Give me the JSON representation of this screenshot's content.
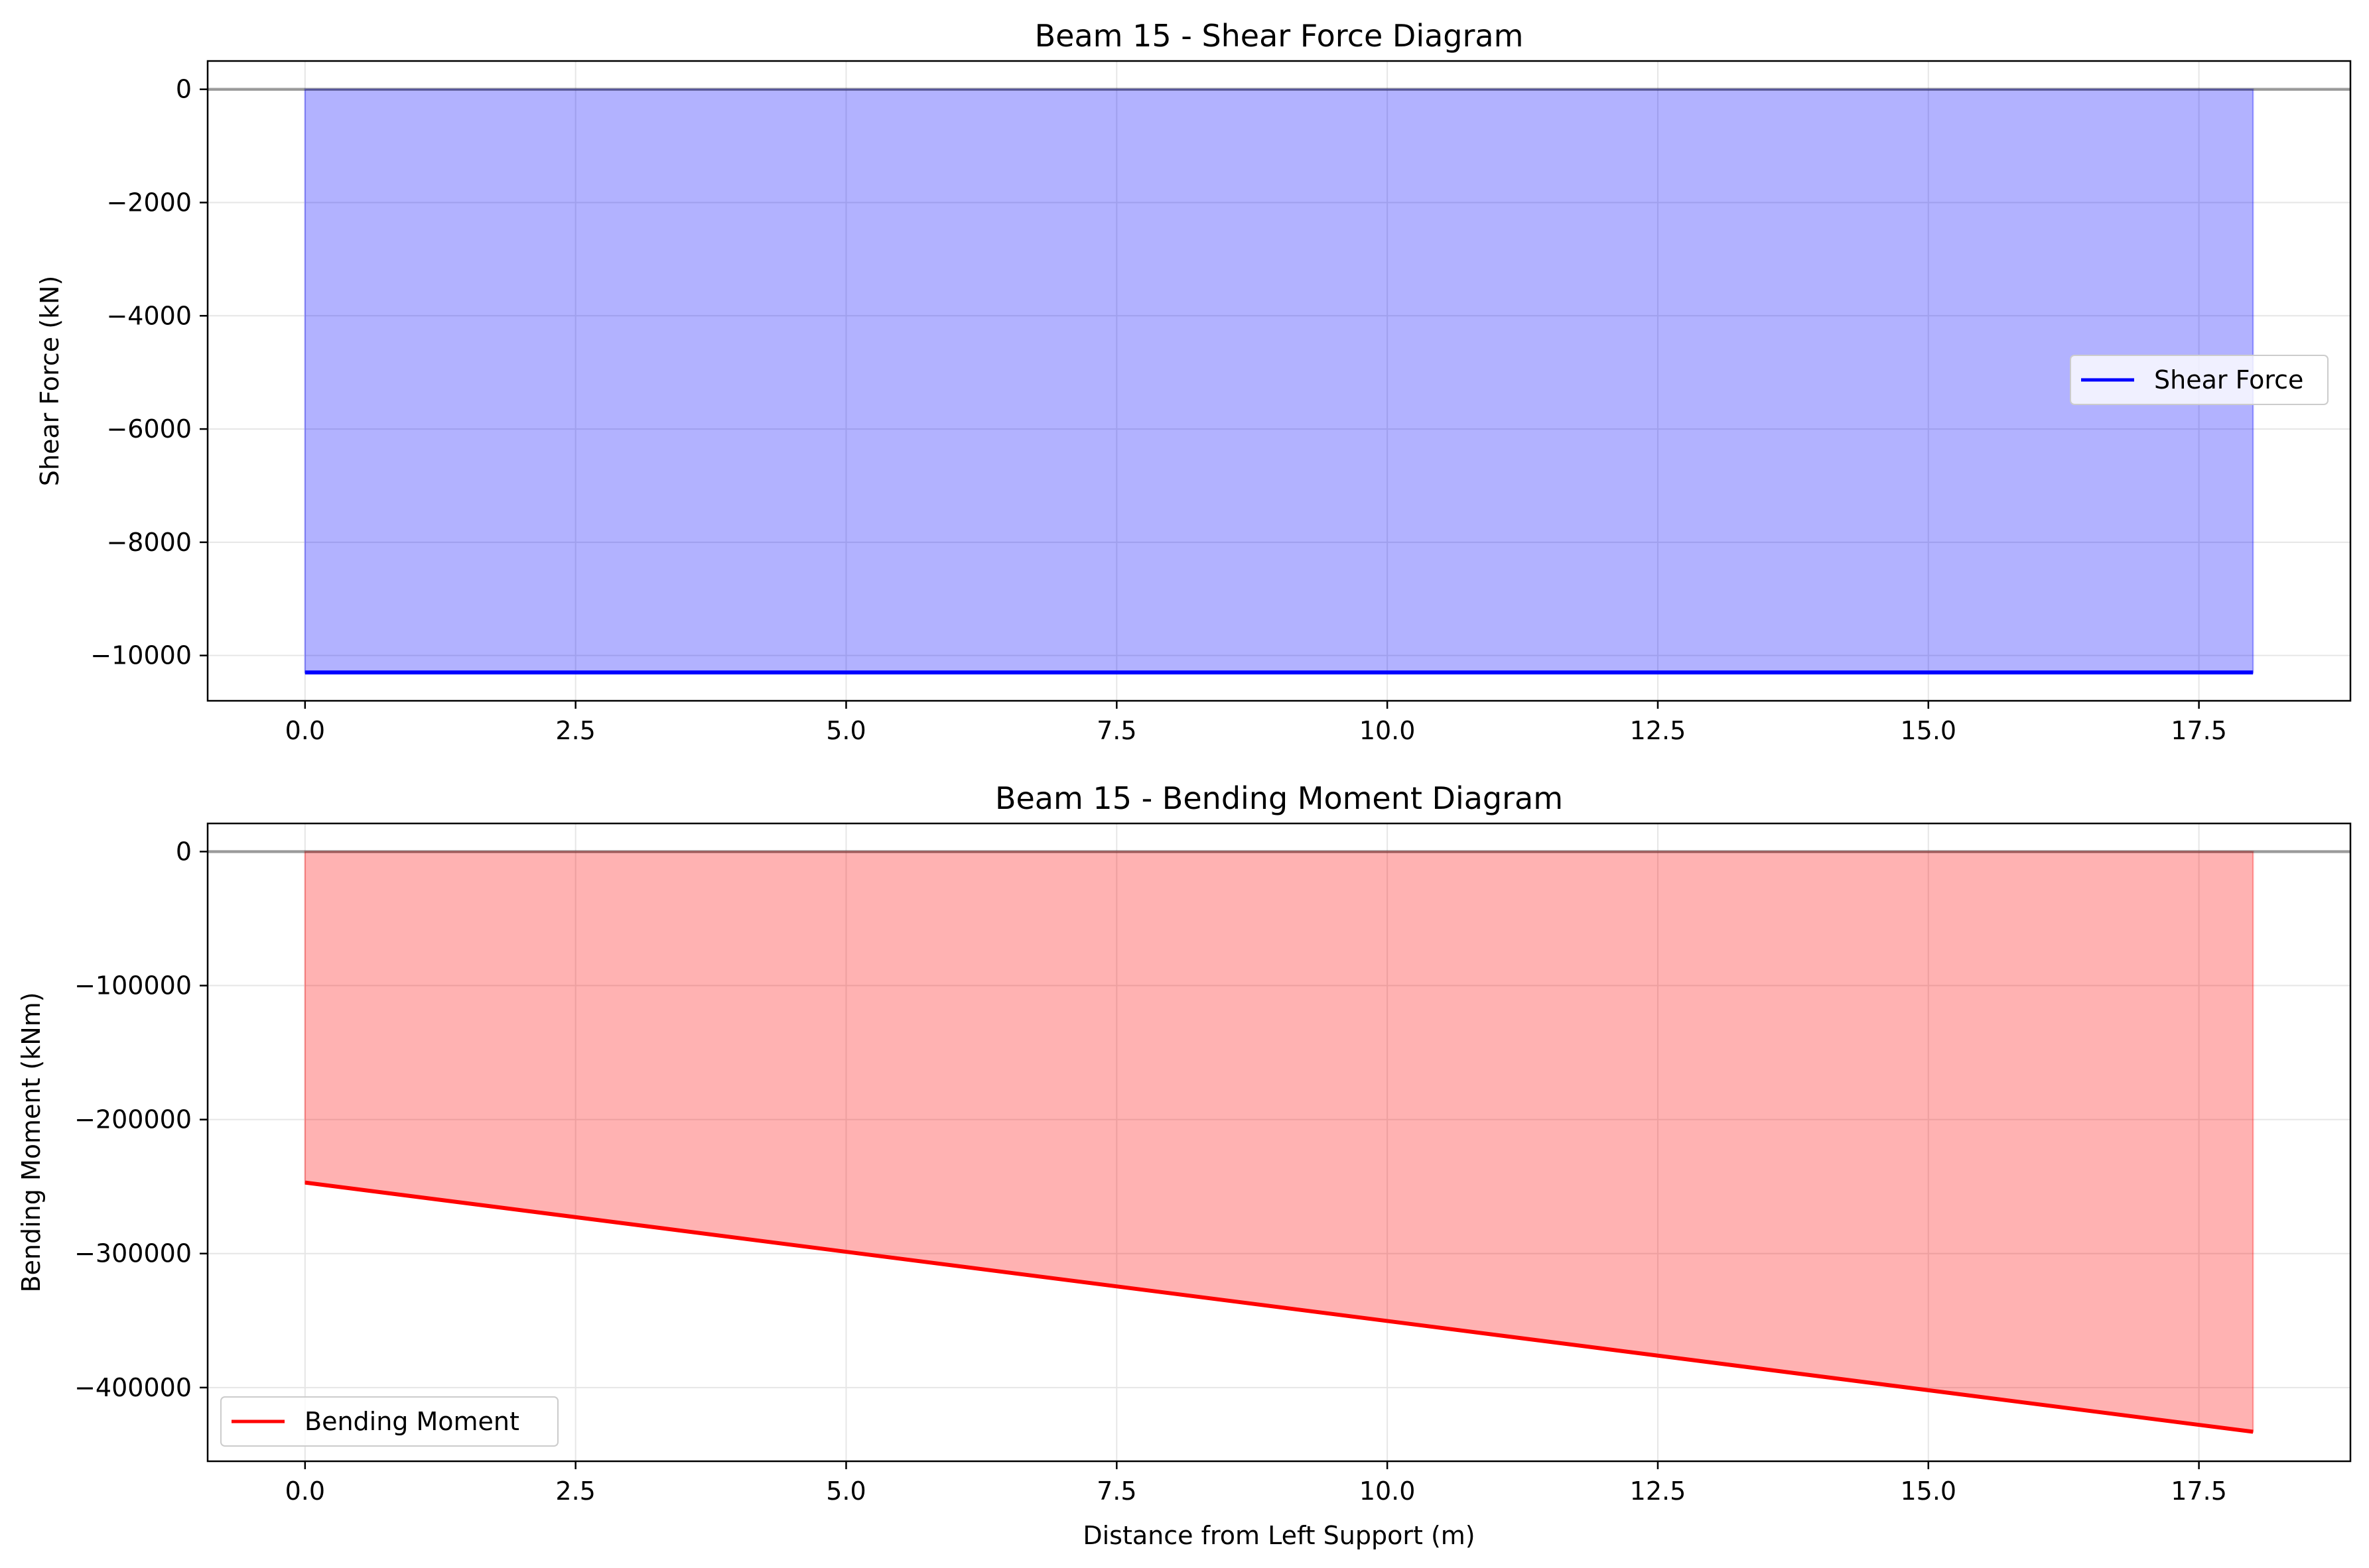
{
  "chart_data": [
    {
      "type": "area",
      "title": "Beam 15 - Shear Force Diagram",
      "xlabel": "",
      "ylabel": "Shear Force (kN)",
      "xlim": [
        -0.9,
        18.9
      ],
      "ylim": [
        -10800,
        500
      ],
      "xticks": [
        0.0,
        2.5,
        5.0,
        7.5,
        10.0,
        12.5,
        15.0,
        17.5
      ],
      "xtick_labels": [
        "0.0",
        "2.5",
        "5.0",
        "7.5",
        "10.0",
        "12.5",
        "15.0",
        "17.5"
      ],
      "yticks": [
        0,
        -2000,
        -4000,
        -6000,
        -8000,
        -10000
      ],
      "ytick_labels": [
        "0",
        "−2000",
        "−4000",
        "−6000",
        "−8000",
        "−10000"
      ],
      "grid": true,
      "zero_line": true,
      "legend_position": "center-right",
      "series": [
        {
          "name": "Shear Force",
          "color": "#0000ff",
          "fill_color": "#0000ff",
          "x": [
            0,
            18
          ],
          "y": [
            -10300,
            -10300
          ]
        }
      ]
    },
    {
      "type": "area",
      "title": "Beam 15 - Bending Moment Diagram",
      "xlabel": "Distance from Left Support (m)",
      "ylabel": "Bending Moment (kNm)",
      "xlim": [
        -0.9,
        18.9
      ],
      "ylim": [
        -455000,
        21000
      ],
      "xticks": [
        0.0,
        2.5,
        5.0,
        7.5,
        10.0,
        12.5,
        15.0,
        17.5
      ],
      "xtick_labels": [
        "0.0",
        "2.5",
        "5.0",
        "7.5",
        "10.0",
        "12.5",
        "15.0",
        "17.5"
      ],
      "yticks": [
        0,
        -100000,
        -200000,
        -300000,
        -400000
      ],
      "ytick_labels": [
        "0",
        "−100000",
        "−200000",
        "−300000",
        "−400000"
      ],
      "grid": true,
      "zero_line": true,
      "legend_position": "lower-left",
      "series": [
        {
          "name": "Bending Moment",
          "color": "#ff0000",
          "fill_color": "#ff0000",
          "x": [
            0,
            18
          ],
          "y": [
            -247000,
            -433000
          ]
        }
      ]
    }
  ]
}
